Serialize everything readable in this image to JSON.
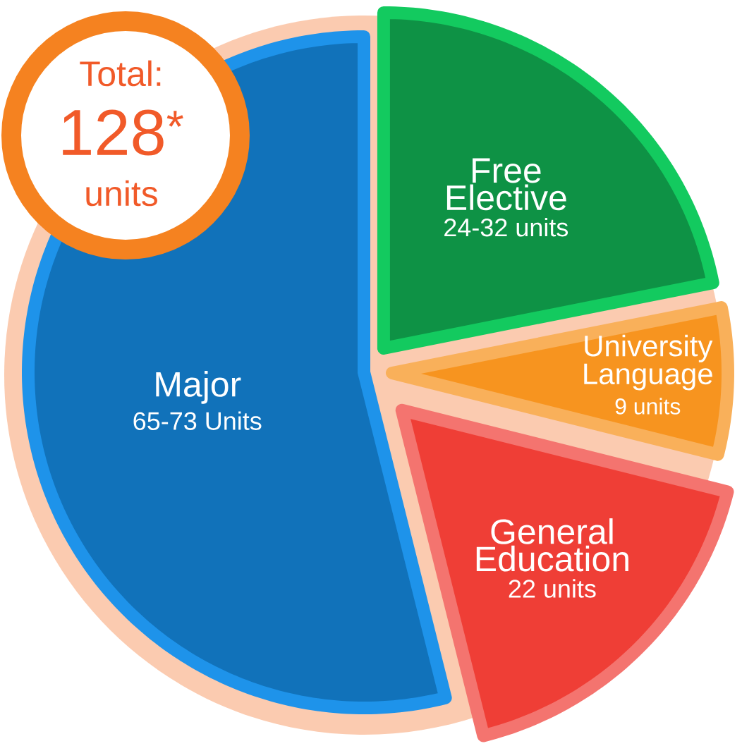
{
  "chart_data": {
    "type": "pie",
    "categories": [
      "Free Elective",
      "University Language",
      "General Education",
      "Major"
    ],
    "values": [
      28,
      9,
      22,
      69
    ],
    "colors": [
      "#0e9245",
      "#f7941f",
      "#ef3e36",
      "#1172ba"
    ],
    "value_labels": [
      "24-32 units",
      "9 units",
      "22 units",
      "65-73 Units"
    ],
    "annotations": [
      "Total:",
      "128$^{*}$",
      "units"
    ]
  }
}
